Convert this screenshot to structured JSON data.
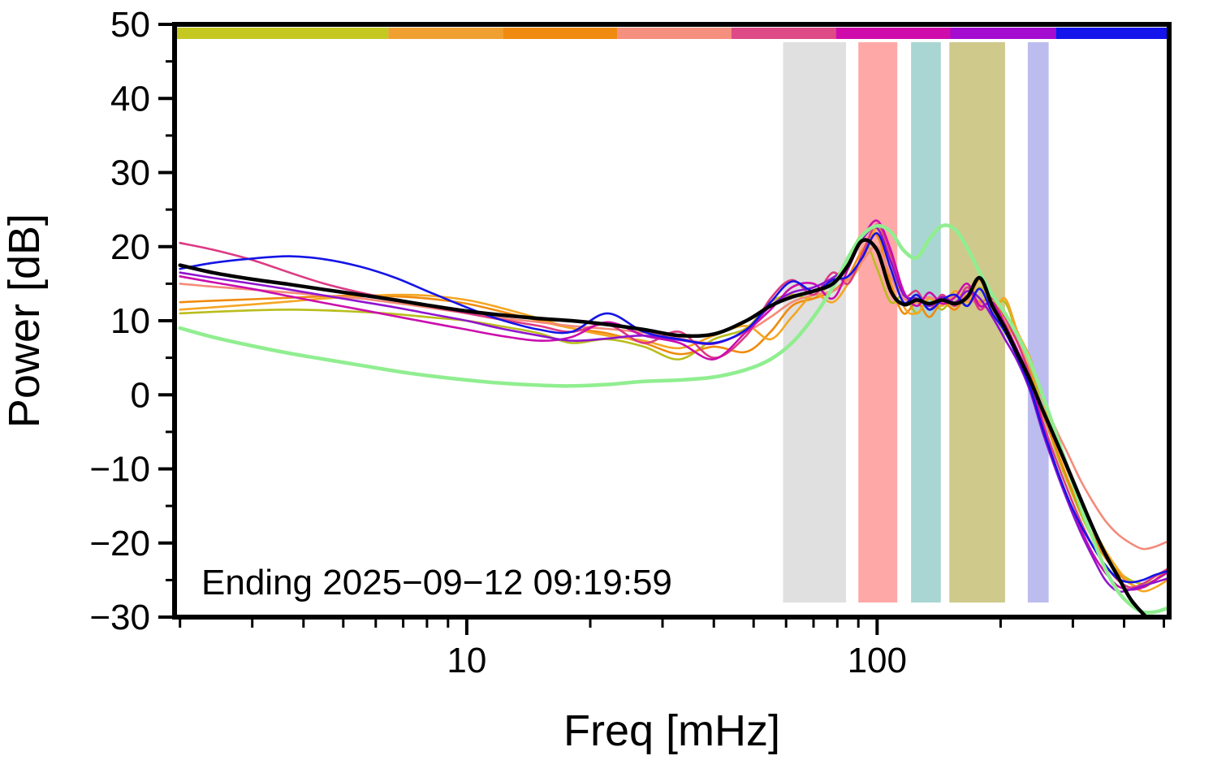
{
  "chart_data": {
    "type": "line",
    "title": "",
    "xlabel": "Freq [mHz]",
    "ylabel": "Power [dB]",
    "annotation": "Ending 2025−09−12 09:19:59",
    "x_scale": "log",
    "xlim": [
      1.94,
      515
    ],
    "ylim": [
      -30,
      50
    ],
    "grid": false,
    "legend": "none",
    "frame_color": "#000000",
    "y_ticks": [
      {
        "value": 50,
        "label": "50"
      },
      {
        "value": 40,
        "label": "40"
      },
      {
        "value": 30,
        "label": "30"
      },
      {
        "value": 20,
        "label": "20"
      },
      {
        "value": 10,
        "label": "10"
      },
      {
        "value": 0,
        "label": "0"
      },
      {
        "value": -10,
        "label": "−10"
      },
      {
        "value": -20,
        "label": "−20"
      },
      {
        "value": -30,
        "label": "−30"
      }
    ],
    "y_minor_ticks": [
      -25,
      -15,
      -5,
      5,
      15,
      25,
      35,
      45
    ],
    "x_ticks": [
      {
        "value": 10,
        "label": "10"
      },
      {
        "value": 100,
        "label": "100"
      }
    ],
    "x_minor_ticks": [
      2,
      3,
      4,
      5,
      6,
      7,
      8,
      9,
      20,
      30,
      40,
      50,
      60,
      70,
      80,
      90,
      200,
      300,
      400,
      500
    ],
    "top_color_bar": {
      "description": "time-ordered color key strip along top of plot",
      "segments": [
        {
          "color": "#c4c821",
          "from": 0.0,
          "to": 0.215
        },
        {
          "color": "#f0a030",
          "from": 0.215,
          "to": 0.33
        },
        {
          "color": "#f18a10",
          "from": 0.33,
          "to": 0.445
        },
        {
          "color": "#f58f7e",
          "from": 0.445,
          "to": 0.56
        },
        {
          "color": "#de4a86",
          "from": 0.56,
          "to": 0.665
        },
        {
          "color": "#cf0cab",
          "from": 0.665,
          "to": 0.78
        },
        {
          "color": "#a40ccf",
          "from": 0.78,
          "to": 0.886
        },
        {
          "color": "#1414eb",
          "from": 0.886,
          "to": 1.0
        }
      ]
    },
    "bands": [
      {
        "from": 59,
        "to": 84,
        "color": "#e0e0e0"
      },
      {
        "from": 90,
        "to": 112,
        "color": "#ffa8a8"
      },
      {
        "from": 121,
        "to": 143,
        "color": "#a9d6d3"
      },
      {
        "from": 150,
        "to": 205,
        "color": "#cfc98c"
      },
      {
        "from": 233,
        "to": 262,
        "color": "#bcbcee"
      }
    ],
    "x": [
      2,
      2.4,
      3,
      3.7,
      4.5,
      5.5,
      6.7,
      8,
      10,
      12,
      15,
      18,
      22,
      27,
      33,
      40,
      48,
      55,
      62,
      70,
      78,
      85,
      92,
      100,
      108,
      116,
      125,
      134,
      144,
      155,
      166,
      178,
      191,
      205,
      220,
      236,
      253,
      272,
      292,
      313,
      336,
      360,
      386,
      414,
      444,
      476,
      510
    ],
    "series": [
      {
        "name": "spectrum-olive",
        "color": "#b9bd1c",
        "width": 2.6,
        "y": [
          11.0,
          11.2,
          11.4,
          11.5,
          11.4,
          11.2,
          10.9,
          10.5,
          10.0,
          9.3,
          8.3,
          7.0,
          7.5,
          6.5,
          4.8,
          7.5,
          9.0,
          12.5,
          13.5,
          13.0,
          15.5,
          18.0,
          21.5,
          17.0,
          12.5,
          13.5,
          11.0,
          13.0,
          11.5,
          13.5,
          12.0,
          14.5,
          12.0,
          12.5,
          8.0,
          4.0,
          -2.0,
          -7.5,
          -12.0,
          -16.0,
          -19.5,
          -22.0,
          -23.8,
          -25.0,
          -25.5,
          -25.0,
          -24.0
        ]
      },
      {
        "name": "spectrum-orange-1",
        "color": "#ef8b0e",
        "width": 2.6,
        "y": [
          12.5,
          12.7,
          12.9,
          13.1,
          13.3,
          13.4,
          13.3,
          13.0,
          12.3,
          11.3,
          10.0,
          9.0,
          8.3,
          7.0,
          5.5,
          6.5,
          5.8,
          8.5,
          12.0,
          13.0,
          14.0,
          16.0,
          19.5,
          21.5,
          15.0,
          11.0,
          12.5,
          10.5,
          12.5,
          11.5,
          13.5,
          12.5,
          13.0,
          10.0,
          7.0,
          3.0,
          -2.5,
          -7.0,
          -11.5,
          -15.5,
          -19.0,
          -22.0,
          -24.0,
          -25.5,
          -26.0,
          -25.0,
          -23.5
        ]
      },
      {
        "name": "spectrum-orange-2",
        "color": "#f5a623",
        "width": 2.6,
        "y": [
          11.5,
          11.8,
          12.2,
          12.6,
          13.0,
          13.3,
          13.5,
          13.4,
          12.8,
          11.8,
          10.3,
          9.0,
          8.0,
          7.3,
          6.3,
          8.0,
          9.3,
          7.5,
          10.5,
          13.5,
          12.5,
          15.0,
          18.0,
          22.5,
          18.5,
          12.0,
          11.0,
          13.0,
          12.0,
          14.0,
          12.5,
          15.5,
          11.5,
          13.0,
          8.5,
          5.0,
          -0.5,
          -6.0,
          -10.5,
          -14.5,
          -18.0,
          -21.0,
          -23.5,
          -25.5,
          -26.5,
          -26.0,
          -25.0
        ]
      },
      {
        "name": "spectrum-salmon",
        "color": "#f58a7a",
        "width": 2.6,
        "y": [
          15.0,
          14.6,
          14.2,
          13.8,
          13.4,
          13.0,
          12.4,
          11.8,
          11.0,
          10.4,
          9.8,
          9.3,
          8.9,
          8.4,
          7.6,
          7.0,
          8.5,
          10.5,
          12.5,
          13.5,
          14.0,
          15.5,
          18.0,
          20.0,
          16.0,
          13.0,
          12.5,
          13.2,
          12.3,
          13.3,
          12.8,
          12.3,
          11.3,
          10.0,
          7.5,
          4.0,
          -0.5,
          -4.5,
          -8.0,
          -11.5,
          -14.5,
          -17.0,
          -18.8,
          -20.0,
          -20.8,
          -20.5,
          -19.8
        ]
      },
      {
        "name": "spectrum-pink",
        "color": "#dc3a83",
        "width": 2.6,
        "y": [
          20.5,
          19.6,
          18.2,
          16.5,
          15.0,
          13.8,
          12.8,
          12.0,
          11.0,
          10.2,
          9.3,
          8.5,
          9.5,
          7.0,
          8.5,
          5.0,
          8.0,
          13.0,
          15.5,
          13.5,
          16.5,
          15.0,
          19.0,
          23.0,
          19.0,
          13.5,
          14.0,
          11.5,
          13.5,
          12.0,
          14.5,
          11.5,
          13.0,
          10.5,
          7.0,
          2.5,
          -3.5,
          -8.5,
          -13.0,
          -17.0,
          -20.5,
          -23.0,
          -25.0,
          -26.0,
          -25.5,
          -24.5,
          -23.5
        ]
      },
      {
        "name": "spectrum-magenta",
        "color": "#cb0dad",
        "width": 2.6,
        "y": [
          16.0,
          15.2,
          14.3,
          13.3,
          12.4,
          11.5,
          10.6,
          9.8,
          8.8,
          8.0,
          7.3,
          7.8,
          9.8,
          8.0,
          7.0,
          4.8,
          8.5,
          11.5,
          14.5,
          15.0,
          13.0,
          17.0,
          21.0,
          23.5,
          19.5,
          14.0,
          12.0,
          13.8,
          12.3,
          13.2,
          15.0,
          12.0,
          12.5,
          9.5,
          6.0,
          2.0,
          -4.0,
          -9.5,
          -14.0,
          -18.0,
          -21.5,
          -24.0,
          -25.8,
          -26.3,
          -26.0,
          -25.0,
          -24.0
        ]
      },
      {
        "name": "spectrum-purple",
        "color": "#9013cf",
        "width": 2.6,
        "y": [
          16.5,
          15.8,
          15.0,
          14.2,
          13.4,
          12.6,
          11.8,
          11.0,
          10.0,
          9.0,
          8.0,
          7.3,
          7.6,
          8.0,
          7.4,
          6.9,
          8.8,
          12.0,
          13.8,
          14.5,
          15.8,
          17.5,
          21.0,
          22.5,
          18.0,
          13.5,
          13.0,
          12.0,
          13.2,
          12.5,
          14.0,
          13.0,
          10.5,
          7.5,
          4.5,
          0.5,
          -5.0,
          -10.0,
          -14.5,
          -18.5,
          -22.0,
          -25.0,
          -26.5,
          -26.3,
          -25.8,
          -25.3,
          -24.8
        ]
      },
      {
        "name": "spectrum-blue",
        "color": "#1414e6",
        "width": 2.6,
        "y": [
          17.0,
          17.8,
          18.4,
          18.7,
          18.3,
          17.3,
          15.8,
          14.0,
          11.8,
          10.2,
          8.8,
          8.5,
          11.0,
          8.5,
          7.5,
          7.0,
          8.8,
          12.5,
          15.3,
          14.0,
          15.5,
          16.0,
          18.5,
          21.8,
          17.0,
          12.5,
          13.5,
          11.5,
          12.8,
          13.5,
          12.0,
          14.3,
          11.0,
          8.5,
          5.0,
          1.0,
          -4.5,
          -9.5,
          -14.0,
          -17.5,
          -20.5,
          -23.0,
          -24.8,
          -25.3,
          -25.0,
          -24.3,
          -23.8
        ]
      },
      {
        "name": "reference-green",
        "color": "#90ee90",
        "width": 4.5,
        "y": [
          9.0,
          7.8,
          6.6,
          5.6,
          4.8,
          4.0,
          3.2,
          2.6,
          2.0,
          1.6,
          1.3,
          1.2,
          1.4,
          1.8,
          2.0,
          2.4,
          3.4,
          4.8,
          7.0,
          10.5,
          14.5,
          18.5,
          21.5,
          22.8,
          22.0,
          19.5,
          18.5,
          21.0,
          22.8,
          22.3,
          19.8,
          16.5,
          13.5,
          11.0,
          8.0,
          4.5,
          0.0,
          -5.0,
          -10.0,
          -15.0,
          -19.5,
          -23.5,
          -26.5,
          -28.3,
          -29.3,
          -29.3,
          -28.8
        ]
      },
      {
        "name": "mean-black",
        "color": "#000000",
        "width": 4.5,
        "y": [
          17.5,
          16.5,
          15.6,
          14.9,
          14.2,
          13.5,
          12.8,
          12.1,
          11.3,
          10.8,
          10.3,
          10.0,
          9.5,
          8.8,
          8.0,
          8.2,
          10.0,
          12.0,
          13.2,
          14.0,
          15.0,
          17.5,
          20.8,
          19.5,
          14.0,
          12.2,
          12.8,
          12.3,
          12.8,
          12.3,
          13.2,
          15.8,
          12.0,
          9.0,
          5.5,
          2.0,
          -2.0,
          -6.0,
          -10.0,
          -14.0,
          -18.0,
          -21.5,
          -24.5,
          -27.5,
          -29.5,
          -31.0,
          -32.0
        ]
      }
    ]
  }
}
